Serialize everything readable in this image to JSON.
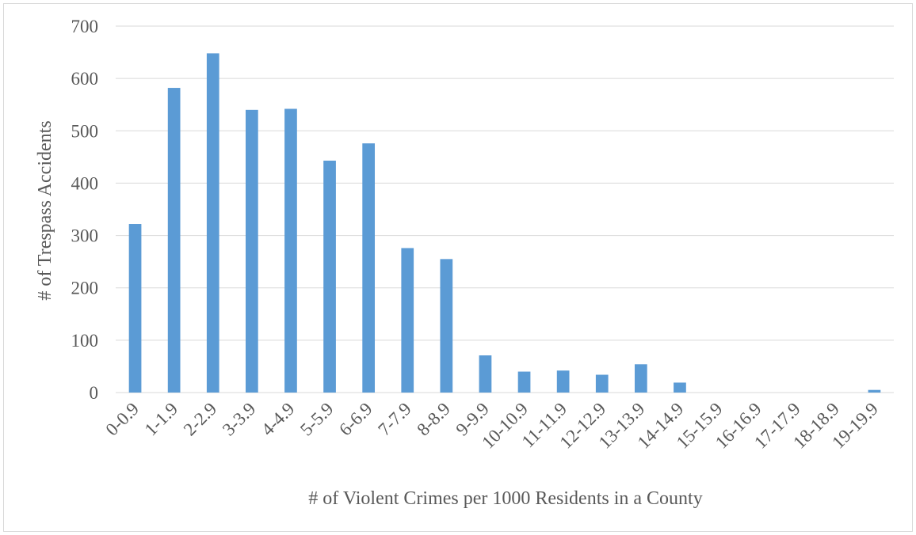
{
  "chart_data": {
    "type": "bar",
    "title": "",
    "xlabel": "# of Violent Crimes per 1000 Residents in a County",
    "ylabel": "# of Trespass Accidents",
    "categories": [
      "0-0.9",
      "1-1.9",
      "2-2.9",
      "3-3.9",
      "4-4.9",
      "5-5.9",
      "6-6.9",
      "7-7.9",
      "8-8.9",
      "9-9.9",
      "10-10.9",
      "11-11.9",
      "12-12.9",
      "13-13.9",
      "14-14.9",
      "15-15.9",
      "16-16.9",
      "17-17.9",
      "18-18.9",
      "19-19.9"
    ],
    "values": [
      322,
      582,
      648,
      540,
      542,
      443,
      476,
      276,
      255,
      71,
      40,
      42,
      34,
      54,
      19,
      0,
      0,
      0,
      0,
      5
    ],
    "ylim": [
      0,
      700
    ],
    "yticks": [
      "0",
      "100",
      "200",
      "300",
      "400",
      "500",
      "600",
      "700"
    ],
    "grid": true,
    "legend": "none",
    "bar_color": "#5B9BD5",
    "grid_color": "#d9d9d9"
  }
}
